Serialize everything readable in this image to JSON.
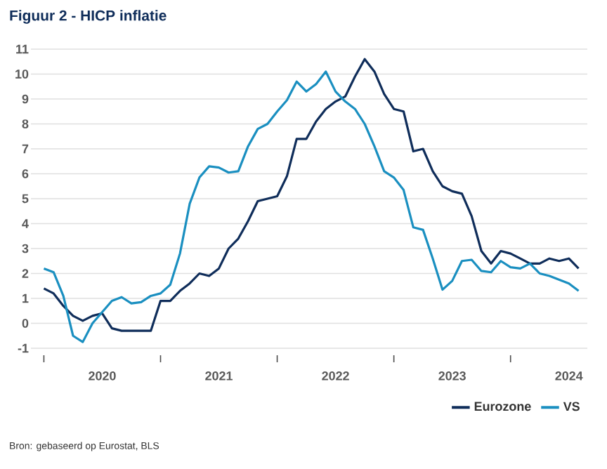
{
  "chart_data": {
    "type": "line",
    "title": "Figuur 2 - HICP inflatie",
    "annotations": [
      "Bron: gebaseerd op Eurostat, BLS"
    ],
    "x": [
      "2020-01",
      "2020-02",
      "2020-03",
      "2020-04",
      "2020-05",
      "2020-06",
      "2020-07",
      "2020-08",
      "2020-09",
      "2020-10",
      "2020-11",
      "2020-12",
      "2021-01",
      "2021-02",
      "2021-03",
      "2021-04",
      "2021-05",
      "2021-06",
      "2021-07",
      "2021-08",
      "2021-09",
      "2021-10",
      "2021-11",
      "2021-12",
      "2022-01",
      "2022-02",
      "2022-03",
      "2022-04",
      "2022-05",
      "2022-06",
      "2022-07",
      "2022-08",
      "2022-09",
      "2022-10",
      "2022-11",
      "2022-12",
      "2023-01",
      "2023-02",
      "2023-03",
      "2023-04",
      "2023-05",
      "2023-06",
      "2023-07",
      "2023-08",
      "2023-09",
      "2023-10",
      "2023-11",
      "2023-12",
      "2024-01",
      "2024-02",
      "2024-03",
      "2024-04",
      "2024-05",
      "2024-06",
      "2024-07",
      "2024-08"
    ],
    "series": [
      {
        "name": "Eurozone",
        "color": "#0f2d5a",
        "values": [
          1.4,
          1.2,
          0.7,
          0.3,
          0.1,
          0.3,
          0.4,
          -0.2,
          -0.3,
          -0.3,
          -0.3,
          -0.3,
          0.9,
          0.9,
          1.3,
          1.6,
          2.0,
          1.9,
          2.2,
          3.0,
          3.4,
          4.1,
          4.9,
          5.0,
          5.1,
          5.9,
          7.4,
          7.4,
          8.1,
          8.6,
          8.9,
          9.1,
          9.9,
          10.6,
          10.1,
          9.2,
          8.6,
          8.5,
          6.9,
          7.0,
          6.1,
          5.5,
          5.3,
          5.2,
          4.3,
          2.9,
          2.4,
          2.9,
          2.8,
          2.6,
          2.4,
          2.4,
          2.6,
          2.5,
          2.6,
          2.2
        ]
      },
      {
        "name": "VS",
        "color": "#1a8fc0",
        "values": [
          2.2,
          2.05,
          1.1,
          -0.5,
          -0.75,
          0.0,
          0.45,
          0.9,
          1.05,
          0.8,
          0.85,
          1.1,
          1.2,
          1.55,
          2.8,
          4.8,
          5.85,
          6.3,
          6.25,
          6.05,
          6.1,
          7.1,
          7.8,
          8.0,
          8.5,
          8.95,
          9.7,
          9.3,
          9.6,
          10.1,
          9.3,
          8.9,
          8.6,
          8.0,
          7.1,
          6.1,
          5.85,
          5.35,
          3.85,
          3.75,
          2.6,
          1.35,
          1.7,
          2.5,
          2.55,
          2.1,
          2.05,
          2.5,
          2.25,
          2.2,
          2.4,
          2.0,
          1.9,
          1.75,
          1.6,
          1.3
        ]
      }
    ],
    "xlim": [
      "2019-11-21",
      "2024-08-28"
    ],
    "xticks": [
      {
        "value": "2020-01",
        "label": null
      },
      {
        "value": "2020-07",
        "label": "2020"
      },
      {
        "value": "2021-01",
        "label": null
      },
      {
        "value": "2021-07",
        "label": "2021"
      },
      {
        "value": "2022-01",
        "label": null
      },
      {
        "value": "2022-07",
        "label": "2022"
      },
      {
        "value": "2023-01",
        "label": null
      },
      {
        "value": "2023-07",
        "label": "2023"
      },
      {
        "value": "2024-01",
        "label": null
      },
      {
        "value": "2024-07",
        "label": "2024"
      }
    ],
    "ylim": [
      -1,
      11
    ],
    "yticks": [
      -1,
      0,
      1,
      2,
      3,
      4,
      5,
      6,
      7,
      8,
      9,
      10,
      11
    ],
    "grid": "y",
    "legend": "bottom right",
    "line_style": "solid",
    "marker": "none"
  }
}
